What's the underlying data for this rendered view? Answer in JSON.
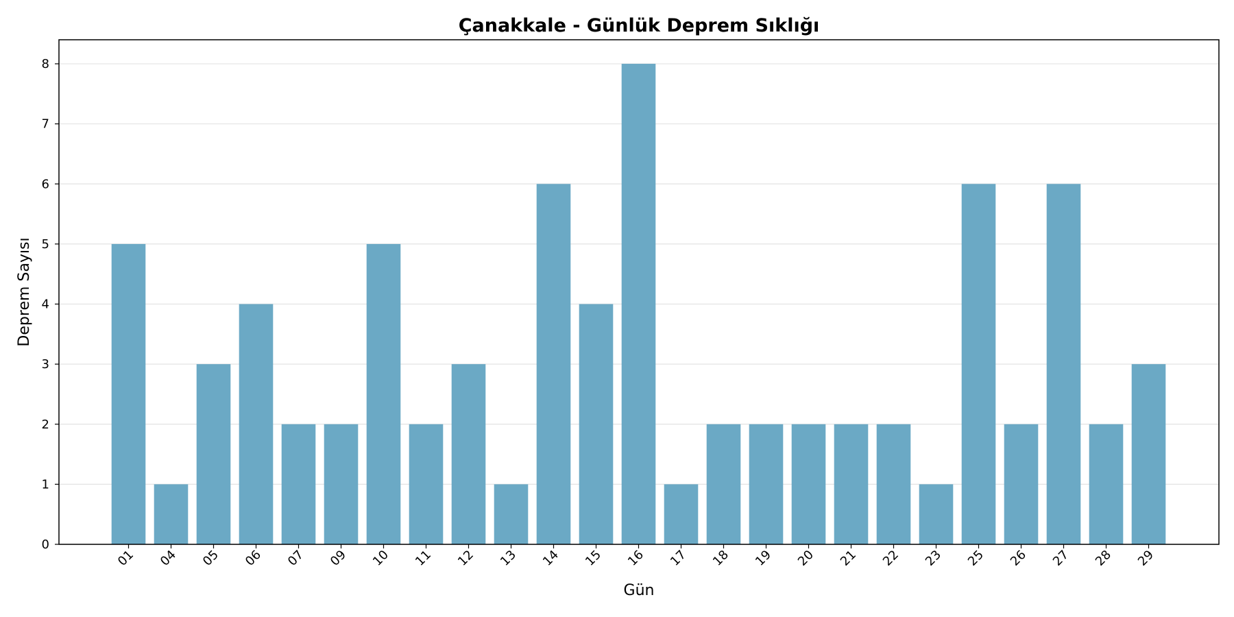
{
  "chart_data": {
    "type": "bar",
    "title": "Çanakkale - Günlük Deprem Sıklığı",
    "xlabel": "Gün",
    "ylabel": "Deprem Sayısı",
    "categories": [
      "01",
      "04",
      "05",
      "06",
      "07",
      "09",
      "10",
      "11",
      "12",
      "13",
      "14",
      "15",
      "16",
      "17",
      "18",
      "19",
      "20",
      "21",
      "22",
      "23",
      "25",
      "26",
      "27",
      "28",
      "29"
    ],
    "values": [
      5,
      1,
      3,
      4,
      2,
      2,
      5,
      2,
      3,
      1,
      6,
      4,
      8,
      1,
      2,
      2,
      2,
      2,
      2,
      1,
      6,
      2,
      6,
      2,
      3
    ],
    "ylim": [
      0,
      8.4
    ],
    "yticks": [
      0,
      1,
      2,
      3,
      4,
      5,
      6,
      7,
      8
    ],
    "grid": "y",
    "bar_color": "#6ba9c5"
  }
}
